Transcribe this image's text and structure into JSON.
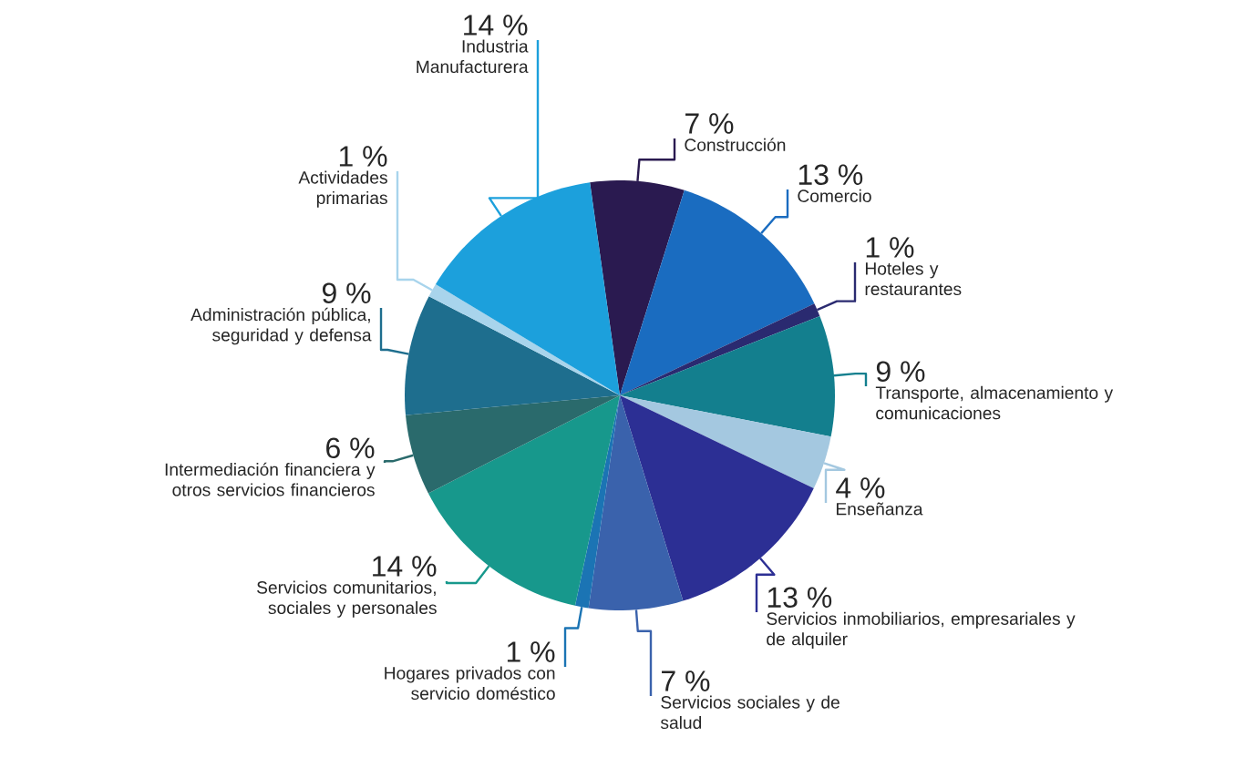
{
  "chart_data": {
    "type": "pie",
    "categories": [
      "Construcción",
      "Comercio",
      "Hoteles y restaurantes",
      "Transporte, almacenamiento y comunicaciones",
      "Enseñanza",
      "Servicios inmobiliarios, empresariales y de alquiler",
      "Servicios sociales y de salud",
      "Hogares privados con servicio doméstico",
      "Servicios comunitarios, sociales y personales",
      "Intermediación financiera y otros servicios financieros",
      "Administración pública, seguridad y defensa",
      "Actividades primarias",
      "Industria Manufacturera"
    ],
    "values": [
      7,
      13,
      1,
      9,
      4,
      13,
      7,
      1,
      14,
      6,
      9,
      1,
      14
    ],
    "value_labels": [
      "7 %",
      "13 %",
      "1 %",
      "9 %",
      "4 %",
      "13 %",
      "7 %",
      "1 %",
      "14 %",
      "6 %",
      "9 %",
      "1 %",
      "14 %"
    ],
    "colors": [
      "#2a1a50",
      "#1a6cc0",
      "#2a2a70",
      "#137f8e",
      "#a4c8e0",
      "#2c2f94",
      "#3a62ac",
      "#1b74b4",
      "#17988c",
      "#2a6a6c",
      "#1e6e8e",
      "#a8d4ec",
      "#1ca0dc"
    ]
  }
}
